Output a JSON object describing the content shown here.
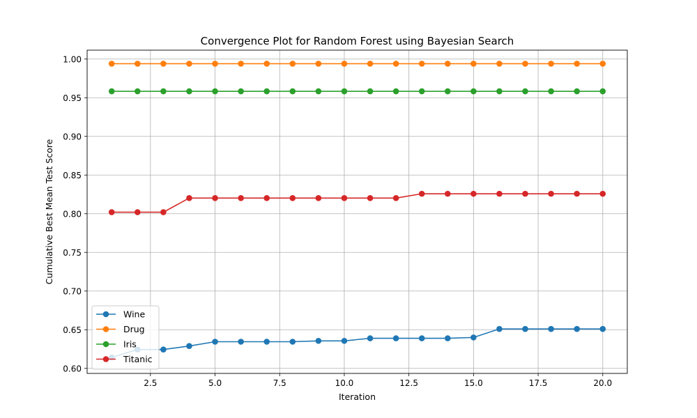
{
  "chart_data": {
    "type": "line",
    "title": "Convergence Plot for Random Forest using Bayesian Search",
    "xlabel": "Iteration",
    "ylabel": "Cumulative Best Mean Test Score",
    "xlim": [
      0.05,
      20.95
    ],
    "ylim": [
      0.5935,
      1.0115
    ],
    "xticks": [
      2.5,
      5.0,
      7.5,
      10.0,
      12.5,
      15.0,
      17.5,
      20.0
    ],
    "xtick_labels": [
      "2.5",
      "5.0",
      "7.5",
      "10.0",
      "12.5",
      "15.0",
      "17.5",
      "20.0"
    ],
    "yticks": [
      0.6,
      0.65,
      0.7,
      0.75,
      0.8,
      0.85,
      0.9,
      0.95,
      1.0
    ],
    "ytick_labels": [
      "0.60",
      "0.65",
      "0.70",
      "0.75",
      "0.80",
      "0.85",
      "0.90",
      "0.95",
      "1.00"
    ],
    "grid": true,
    "legend_position": "lower-left",
    "x": [
      1,
      2,
      3,
      4,
      5,
      6,
      7,
      8,
      9,
      10,
      11,
      12,
      13,
      14,
      15,
      16,
      17,
      18,
      19,
      20
    ],
    "series": [
      {
        "name": "Wine",
        "color": "#1f77b4",
        "values": [
          0.6142,
          0.6244,
          0.6244,
          0.6289,
          0.6345,
          0.6345,
          0.6345,
          0.6345,
          0.6356,
          0.6356,
          0.6389,
          0.6389,
          0.6389,
          0.6389,
          0.64,
          0.651,
          0.651,
          0.651,
          0.651,
          0.651
        ]
      },
      {
        "name": "Drug",
        "color": "#ff7f0e",
        "values": [
          0.994,
          0.994,
          0.994,
          0.994,
          0.994,
          0.994,
          0.994,
          0.994,
          0.994,
          0.994,
          0.994,
          0.994,
          0.994,
          0.994,
          0.994,
          0.994,
          0.994,
          0.994,
          0.994,
          0.994
        ]
      },
      {
        "name": "Iris",
        "color": "#2ca02c",
        "values": [
          0.9583,
          0.9583,
          0.9583,
          0.9583,
          0.9583,
          0.9583,
          0.9583,
          0.9583,
          0.9583,
          0.9583,
          0.9583,
          0.9583,
          0.9583,
          0.9583,
          0.9583,
          0.9583,
          0.9583,
          0.9583,
          0.9583,
          0.9583
        ]
      },
      {
        "name": "Titanic",
        "color": "#d62728",
        "values": [
          0.802,
          0.802,
          0.802,
          0.8202,
          0.8202,
          0.8202,
          0.8202,
          0.8202,
          0.8202,
          0.8202,
          0.8202,
          0.8202,
          0.8258,
          0.8258,
          0.8258,
          0.8258,
          0.8258,
          0.8258,
          0.8258,
          0.8258
        ]
      }
    ]
  }
}
